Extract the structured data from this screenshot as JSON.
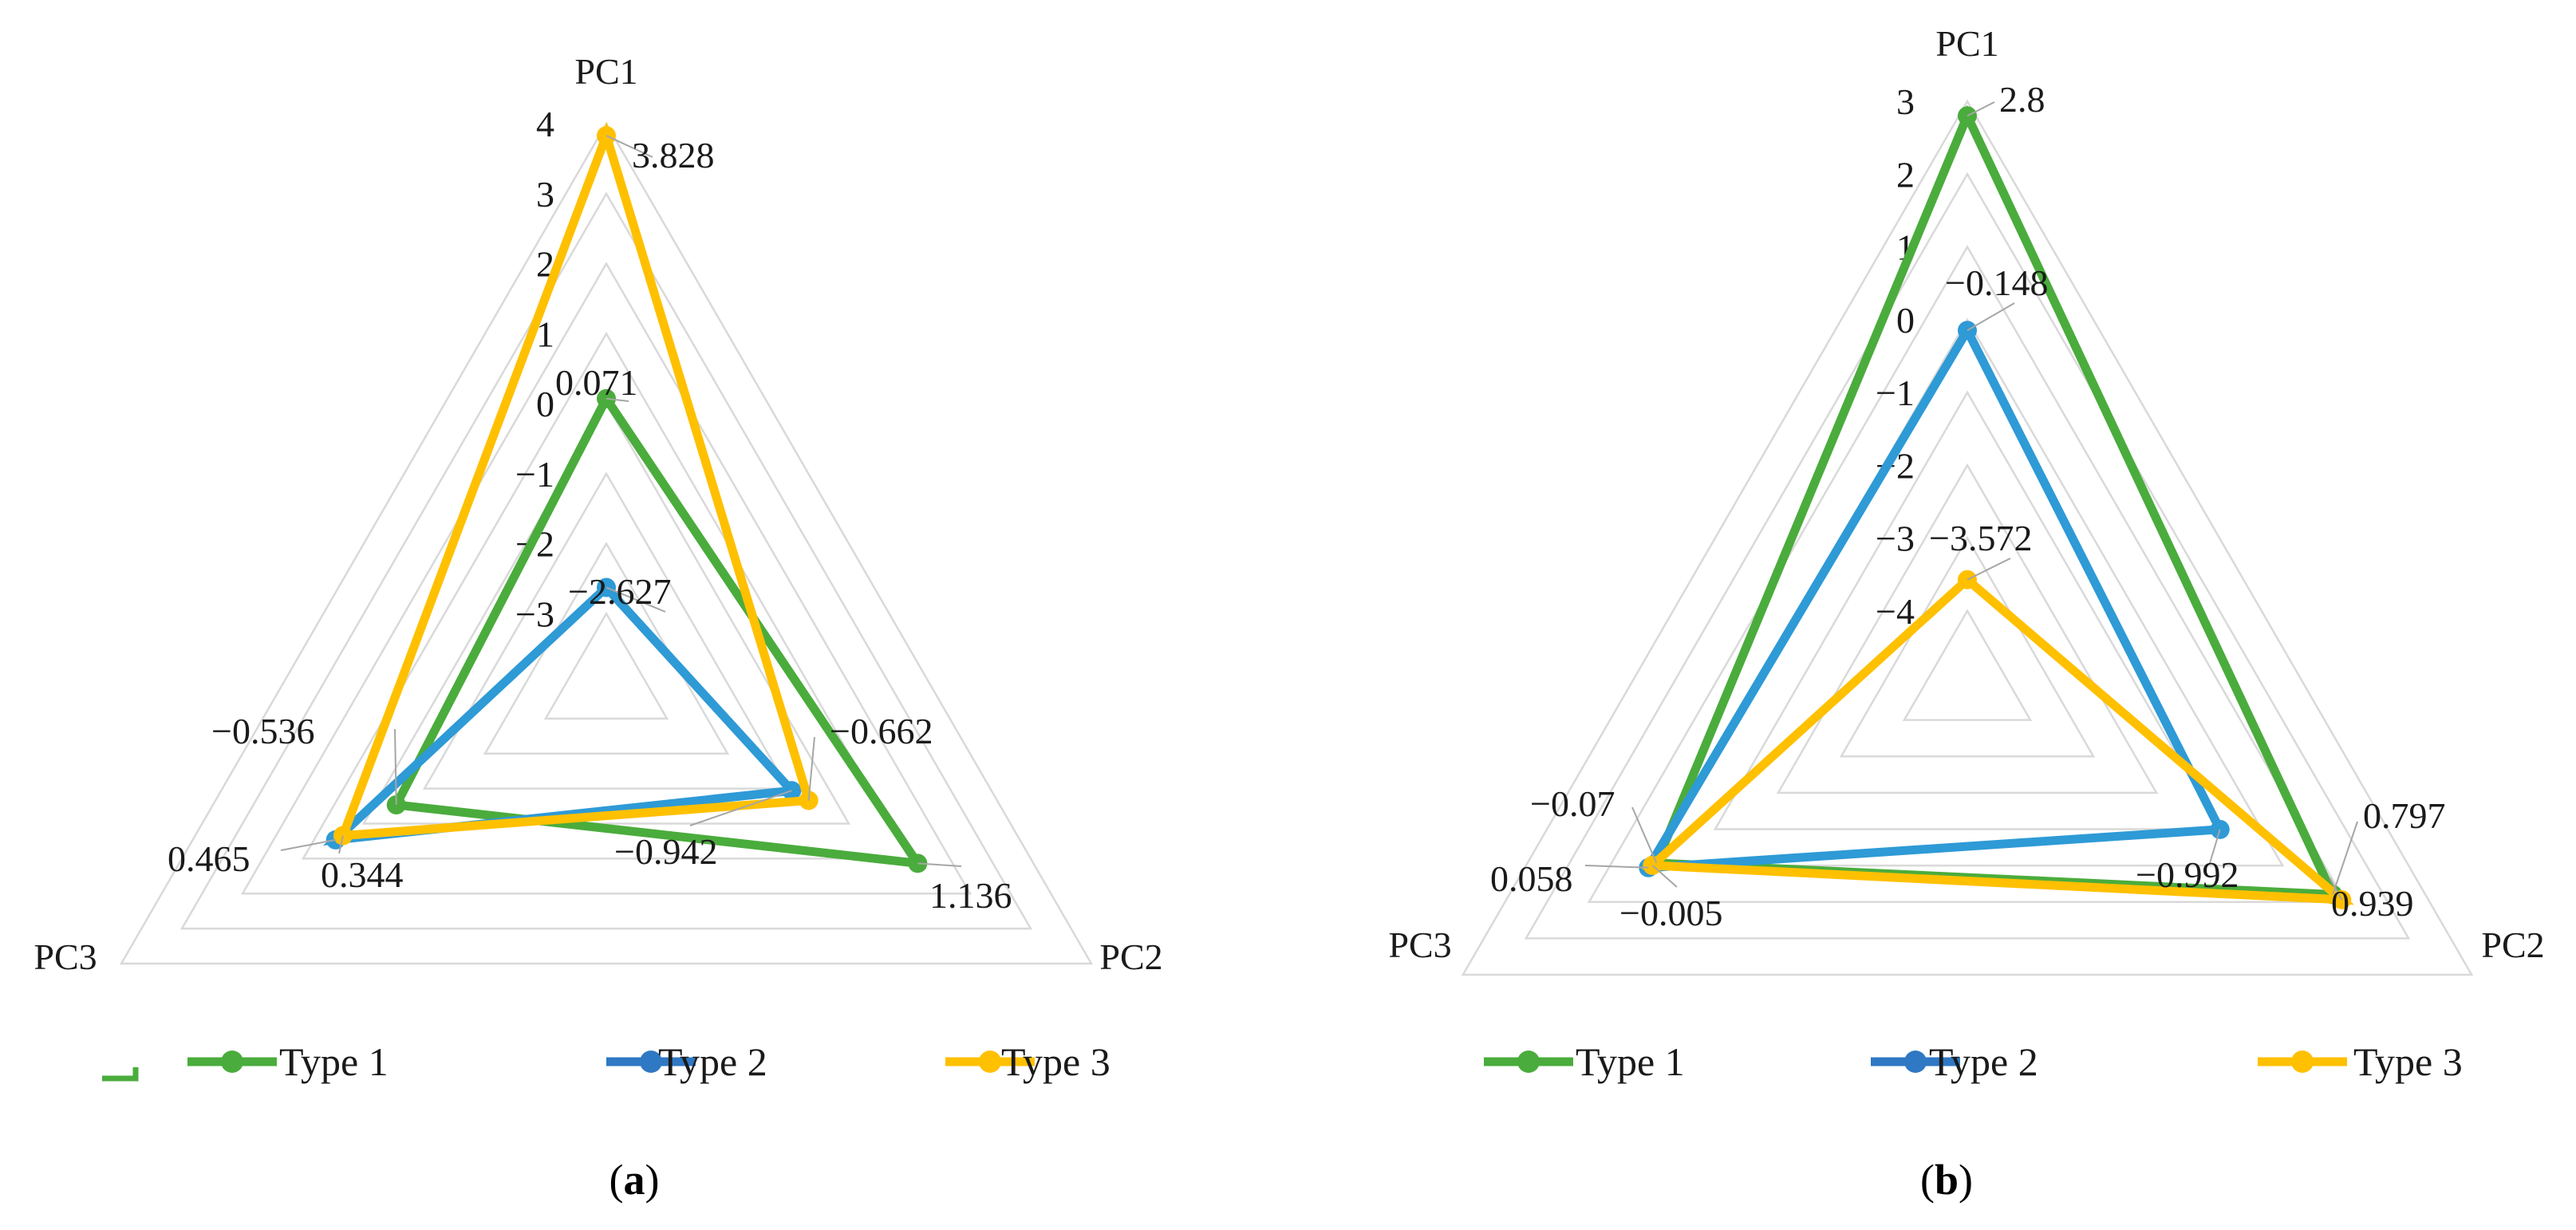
{
  "colors": {
    "type1": "#4aac3c",
    "type2": "#2e9ad6",
    "type3": "#ffc000",
    "legend_type2": "#2f78c4"
  },
  "chart_data": [
    {
      "type": "radar",
      "caption": "a",
      "axes": [
        "PC1",
        "PC2",
        "PC3"
      ],
      "rlim": [
        -4,
        4
      ],
      "ticks": [
        "4",
        "3",
        "2",
        "1",
        "0",
        "−1",
        "−2",
        "−3"
      ],
      "tick_values": [
        4,
        3,
        2,
        1,
        0,
        -1,
        -2,
        -3
      ],
      "series": [
        {
          "name": "Type 1",
          "values": [
            0.071,
            1.136,
            -0.536
          ],
          "labels": [
            "0.071",
            "1.136",
            "−0.536"
          ]
        },
        {
          "name": "Type 2",
          "values": [
            -2.627,
            -0.942,
            0.465
          ],
          "labels": [
            "−2.627",
            "−0.942",
            "0.465"
          ]
        },
        {
          "name": "Type 3",
          "values": [
            3.828,
            -0.662,
            0.344
          ],
          "labels": [
            "3.828",
            "−0.662",
            "0.344"
          ]
        }
      ],
      "legend": [
        "Type 1",
        "Type 2",
        "Type 3"
      ]
    },
    {
      "type": "radar",
      "caption": "b",
      "axes": [
        "PC1",
        "PC2",
        "PC3"
      ],
      "rlim": [
        -5,
        3
      ],
      "ticks": [
        "3",
        "2",
        "1",
        "0",
        "−1",
        "−2",
        "−3",
        "−4"
      ],
      "tick_values": [
        3,
        2,
        1,
        0,
        -1,
        -2,
        -3,
        -4
      ],
      "series": [
        {
          "name": "Type 1",
          "values": [
            2.8,
            0.797,
            -0.07
          ],
          "labels": [
            "2.8",
            "0.797",
            "−0.07"
          ]
        },
        {
          "name": "Type 2",
          "values": [
            -0.148,
            -0.992,
            0.058
          ],
          "labels": [
            "−0.148",
            "−0.992",
            "0.058"
          ]
        },
        {
          "name": "Type 3",
          "values": [
            -3.572,
            0.939,
            -0.005
          ],
          "labels": [
            "−3.572",
            "0.939",
            "−0.005"
          ]
        }
      ],
      "legend": [
        "Type 1",
        "Type 2",
        "Type 3"
      ]
    }
  ]
}
